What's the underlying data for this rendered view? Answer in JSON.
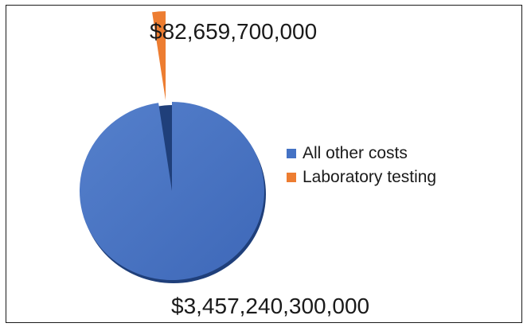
{
  "chart_data": {
    "type": "pie",
    "title": "",
    "slices": [
      {
        "label": "All other costs",
        "value": 3457240300000,
        "display": "$3,457,240,300,000",
        "color": "#4472C4"
      },
      {
        "label": "Laboratory testing",
        "value": 82659700000,
        "display": "$82,659,700,000",
        "color": "#ED7D31"
      }
    ],
    "legend_position": "right",
    "exploded": true
  }
}
